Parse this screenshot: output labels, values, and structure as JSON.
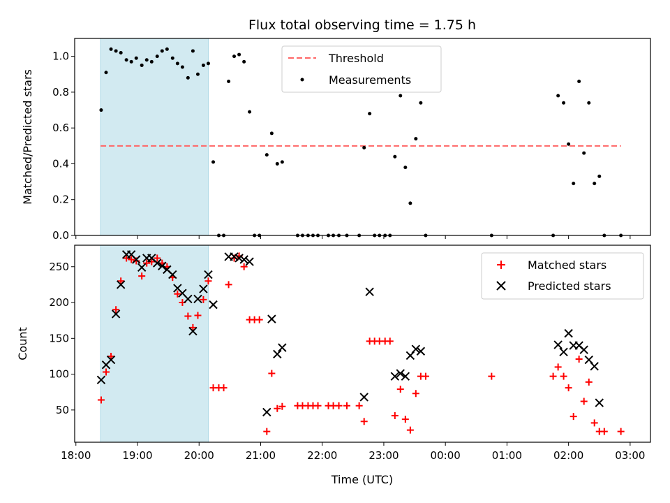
{
  "chart_data": {
    "title": "Flux total observing time = 1.75 h",
    "x_ticks": [
      "18:00",
      "19:00",
      "20:00",
      "21:00",
      "22:00",
      "23:00",
      "00:00",
      "01:00",
      "02:00",
      "03:00"
    ],
    "xlabel": "Time (UTC)",
    "xlim_hours": [
      17.98,
      27.33
    ],
    "highlight_span_hours": [
      18.4,
      20.15
    ],
    "colors": {
      "highlight": "#add8e6",
      "threshold": "#ff6666",
      "measurements": "#000000",
      "matched": "#ff0000",
      "predicted": "#000000"
    },
    "top": {
      "type": "scatter",
      "ylabel": "Matched/Predicted stars",
      "ylim": [
        0,
        1.1
      ],
      "y_ticks": [
        "0.0",
        "0.2",
        "0.4",
        "0.6",
        "0.8",
        "1.0"
      ],
      "legend": [
        "Threshold",
        "Measurements"
      ],
      "legend_placement": "top-center",
      "threshold": {
        "value": 0.5,
        "x_range_hours": [
          18.4,
          26.85
        ]
      },
      "points": [
        [
          18.41,
          0.7
        ],
        [
          18.49,
          0.91
        ],
        [
          18.57,
          1.04
        ],
        [
          18.65,
          1.03
        ],
        [
          18.73,
          1.02
        ],
        [
          18.82,
          0.98
        ],
        [
          18.9,
          0.97
        ],
        [
          18.98,
          0.99
        ],
        [
          19.07,
          0.95
        ],
        [
          19.15,
          0.98
        ],
        [
          19.23,
          0.97
        ],
        [
          19.32,
          1.0
        ],
        [
          19.4,
          1.03
        ],
        [
          19.48,
          1.04
        ],
        [
          19.57,
          0.99
        ],
        [
          19.65,
          0.96
        ],
        [
          19.73,
          0.94
        ],
        [
          19.82,
          0.88
        ],
        [
          19.9,
          1.03
        ],
        [
          19.98,
          0.9
        ],
        [
          20.07,
          0.95
        ],
        [
          20.15,
          0.96
        ],
        [
          20.23,
          0.41
        ],
        [
          20.32,
          0.0
        ],
        [
          20.4,
          0.0
        ],
        [
          20.48,
          0.86
        ],
        [
          20.57,
          1.0
        ],
        [
          20.65,
          1.01
        ],
        [
          20.73,
          0.97
        ],
        [
          20.82,
          0.69
        ],
        [
          20.9,
          0.0
        ],
        [
          20.98,
          0.0
        ],
        [
          21.1,
          0.45
        ],
        [
          21.18,
          0.57
        ],
        [
          21.27,
          0.4
        ],
        [
          21.35,
          0.41
        ],
        [
          21.6,
          0.0
        ],
        [
          21.68,
          0.0
        ],
        [
          21.77,
          0.0
        ],
        [
          21.85,
          0.0
        ],
        [
          21.93,
          0.0
        ],
        [
          22.1,
          0.0
        ],
        [
          22.18,
          0.0
        ],
        [
          22.27,
          0.0
        ],
        [
          22.4,
          0.0
        ],
        [
          22.6,
          0.0
        ],
        [
          22.68,
          0.49
        ],
        [
          22.77,
          0.68
        ],
        [
          22.85,
          0.0
        ],
        [
          22.93,
          0.0
        ],
        [
          23.02,
          0.0
        ],
        [
          23.1,
          0.0
        ],
        [
          23.18,
          0.44
        ],
        [
          23.27,
          0.78
        ],
        [
          23.35,
          0.38
        ],
        [
          23.43,
          0.18
        ],
        [
          23.52,
          0.54
        ],
        [
          23.6,
          0.74
        ],
        [
          23.68,
          0.0
        ],
        [
          24.75,
          0.0
        ],
        [
          25.75,
          0.0
        ],
        [
          25.83,
          0.78
        ],
        [
          25.92,
          0.74
        ],
        [
          26.0,
          0.51
        ],
        [
          26.08,
          0.29
        ],
        [
          26.17,
          0.86
        ],
        [
          26.25,
          0.46
        ],
        [
          26.33,
          0.74
        ],
        [
          26.42,
          0.29
        ],
        [
          26.5,
          0.33
        ],
        [
          26.58,
          0.0
        ],
        [
          26.85,
          0.0
        ]
      ]
    },
    "bottom": {
      "type": "scatter",
      "ylabel": "Count",
      "ylim": [
        5,
        280
      ],
      "y_ticks": [
        "50",
        "100",
        "150",
        "200",
        "250"
      ],
      "legend": [
        "Matched stars",
        "Predicted stars"
      ],
      "legend_placement": "top-right",
      "matched": [
        [
          18.41,
          64
        ],
        [
          18.49,
          103
        ],
        [
          18.57,
          125
        ],
        [
          18.65,
          190
        ],
        [
          18.73,
          230
        ],
        [
          18.82,
          262
        ],
        [
          18.9,
          260
        ],
        [
          18.98,
          258
        ],
        [
          19.07,
          237
        ],
        [
          19.15,
          255
        ],
        [
          19.23,
          257
        ],
        [
          19.32,
          262
        ],
        [
          19.4,
          255
        ],
        [
          19.48,
          250
        ],
        [
          19.57,
          235
        ],
        [
          19.65,
          212
        ],
        [
          19.73,
          200
        ],
        [
          19.82,
          181
        ],
        [
          19.9,
          165
        ],
        [
          19.98,
          182
        ],
        [
          20.07,
          204
        ],
        [
          20.15,
          230
        ],
        [
          20.23,
          81
        ],
        [
          20.32,
          81
        ],
        [
          20.4,
          81
        ],
        [
          20.48,
          225
        ],
        [
          20.57,
          262
        ],
        [
          20.65,
          265
        ],
        [
          20.73,
          250
        ],
        [
          20.82,
          176
        ],
        [
          20.9,
          176
        ],
        [
          20.98,
          176
        ],
        [
          21.1,
          20
        ],
        [
          21.18,
          101
        ],
        [
          21.27,
          52
        ],
        [
          21.35,
          55
        ],
        [
          21.6,
          56
        ],
        [
          21.68,
          56
        ],
        [
          21.77,
          56
        ],
        [
          21.85,
          56
        ],
        [
          21.93,
          56
        ],
        [
          22.1,
          56
        ],
        [
          22.18,
          56
        ],
        [
          22.27,
          56
        ],
        [
          22.4,
          56
        ],
        [
          22.6,
          56
        ],
        [
          22.68,
          34
        ],
        [
          22.77,
          146
        ],
        [
          22.85,
          146
        ],
        [
          22.93,
          146
        ],
        [
          23.02,
          146
        ],
        [
          23.1,
          146
        ],
        [
          23.18,
          42
        ],
        [
          23.27,
          79
        ],
        [
          23.35,
          37
        ],
        [
          23.43,
          22
        ],
        [
          23.52,
          73
        ],
        [
          23.6,
          97
        ],
        [
          23.68,
          97
        ],
        [
          24.75,
          97
        ],
        [
          25.75,
          97
        ],
        [
          25.83,
          110
        ],
        [
          25.92,
          97
        ],
        [
          26.0,
          81
        ],
        [
          26.08,
          41
        ],
        [
          26.17,
          121
        ],
        [
          26.25,
          62
        ],
        [
          26.33,
          89
        ],
        [
          26.42,
          32
        ],
        [
          26.5,
          20
        ],
        [
          26.58,
          20
        ],
        [
          26.85,
          20
        ]
      ],
      "predicted": [
        [
          18.41,
          92
        ],
        [
          18.49,
          113
        ],
        [
          18.57,
          120
        ],
        [
          18.65,
          184
        ],
        [
          18.73,
          225
        ],
        [
          18.82,
          267
        ],
        [
          18.9,
          267
        ],
        [
          18.98,
          260
        ],
        [
          19.07,
          249
        ],
        [
          19.15,
          262
        ],
        [
          19.23,
          262
        ],
        [
          19.32,
          255
        ],
        [
          19.4,
          251
        ],
        [
          19.48,
          246
        ],
        [
          19.57,
          239
        ],
        [
          19.65,
          220
        ],
        [
          19.73,
          213
        ],
        [
          19.82,
          205
        ],
        [
          19.9,
          160
        ],
        [
          19.98,
          205
        ],
        [
          20.07,
          219
        ],
        [
          20.15,
          239
        ],
        [
          20.23,
          197
        ],
        [
          20.48,
          264
        ],
        [
          20.57,
          264
        ],
        [
          20.65,
          262
        ],
        [
          20.73,
          260
        ],
        [
          20.82,
          257
        ],
        [
          21.1,
          47
        ],
        [
          21.18,
          177
        ],
        [
          21.27,
          128
        ],
        [
          21.35,
          137
        ],
        [
          22.68,
          68
        ],
        [
          22.77,
          215
        ],
        [
          23.18,
          97
        ],
        [
          23.27,
          101
        ],
        [
          23.35,
          97
        ],
        [
          23.43,
          126
        ],
        [
          23.52,
          135
        ],
        [
          23.6,
          132
        ],
        [
          25.83,
          141
        ],
        [
          25.92,
          131
        ],
        [
          26.0,
          157
        ],
        [
          26.08,
          140
        ],
        [
          26.17,
          140
        ],
        [
          26.25,
          134
        ],
        [
          26.33,
          120
        ],
        [
          26.42,
          111
        ],
        [
          26.5,
          60
        ]
      ]
    }
  }
}
